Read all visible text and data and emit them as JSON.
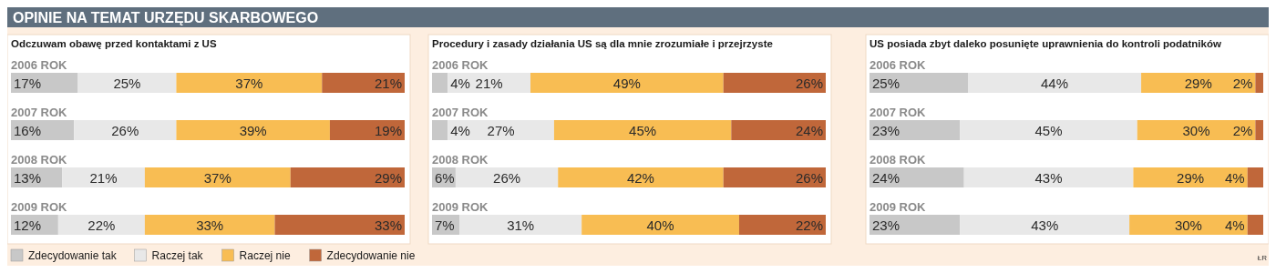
{
  "chart_data": [
    {
      "type": "bar",
      "orientation": "horizontal",
      "stacked": true,
      "title": "OPINIE NA TEMAT URZĘDU SKARBOWEGO",
      "subtitle": "Odczuwam obawę przed kontaktami z US",
      "categories": [
        "2006 ROK",
        "2007 ROK",
        "2008 ROK",
        "2009 ROK"
      ],
      "xlim": [
        0,
        100
      ],
      "tick_labels": false,
      "legend": "bottom",
      "series": [
        {
          "name": "Zdecydowanie tak",
          "color": "#c8c8c8",
          "values": [
            17,
            16,
            13,
            12
          ],
          "value_labels": [
            "17%",
            "16%",
            "13%",
            "12%"
          ]
        },
        {
          "name": "Raczej tak",
          "color": "#e8e8e8",
          "values": [
            25,
            26,
            21,
            22
          ],
          "value_labels": [
            "25%",
            "26%",
            "21%",
            "22%"
          ]
        },
        {
          "name": "Raczej nie",
          "color": "#f8bd53",
          "values": [
            37,
            39,
            37,
            33
          ],
          "value_labels": [
            "37%",
            "39%",
            "37%",
            "33%"
          ]
        },
        {
          "name": "Zdecydowanie nie",
          "color": "#c0673a",
          "values": [
            21,
            19,
            29,
            33
          ],
          "value_labels": [
            "21%",
            "19%",
            "29%",
            "33%"
          ]
        }
      ]
    },
    {
      "type": "bar",
      "orientation": "horizontal",
      "stacked": true,
      "subtitle": "Procedury i zasady działania US są dla mnie zrozumiałe i przejrzyste",
      "categories": [
        "2006 ROK",
        "2007 ROK",
        "2008 ROK",
        "2009 ROK"
      ],
      "xlim": [
        0,
        100
      ],
      "tick_labels": false,
      "series": [
        {
          "color": "#c8c8c8",
          "values": [
            4,
            4,
            6,
            7
          ],
          "value_labels": [
            "4%",
            "4%",
            "6%",
            "7%"
          ]
        },
        {
          "color": "#e8e8e8",
          "values": [
            21,
            27,
            26,
            31
          ],
          "value_labels": [
            "21%",
            "27%",
            "26%",
            "31%"
          ]
        },
        {
          "color": "#f8bd53",
          "values": [
            49,
            45,
            42,
            40
          ],
          "value_labels": [
            "49%",
            "45%",
            "42%",
            "40%"
          ]
        },
        {
          "color": "#c0673a",
          "values": [
            26,
            24,
            26,
            22
          ],
          "value_labels": [
            "26%",
            "24%",
            "26%",
            "22%"
          ]
        }
      ]
    },
    {
      "type": "bar",
      "orientation": "horizontal",
      "stacked": true,
      "subtitle": "US posiada zbyt daleko posunięte uprawnienia do kontroli podatników",
      "categories": [
        "2006 ROK",
        "2007 ROK",
        "2008 ROK",
        "2009 ROK"
      ],
      "xlim": [
        0,
        100
      ],
      "tick_labels": false,
      "annotations": [
        "ŁR"
      ],
      "series": [
        {
          "color": "#c8c8c8",
          "values": [
            25,
            23,
            24,
            23
          ],
          "value_labels": [
            "25%",
            "23%",
            "24%",
            "23%"
          ]
        },
        {
          "color": "#e8e8e8",
          "values": [
            44,
            45,
            43,
            43
          ],
          "value_labels": [
            "44%",
            "45%",
            "43%",
            "43%"
          ]
        },
        {
          "color": "#f8bd53",
          "values": [
            29,
            30,
            29,
            30
          ],
          "value_labels": [
            "29%",
            "30%",
            "29%",
            "30%"
          ]
        },
        {
          "color": "#c0673a",
          "values": [
            2,
            2,
            4,
            4
          ],
          "value_labels": [
            "2%",
            "2%",
            "4%",
            "4%"
          ]
        }
      ]
    }
  ]
}
